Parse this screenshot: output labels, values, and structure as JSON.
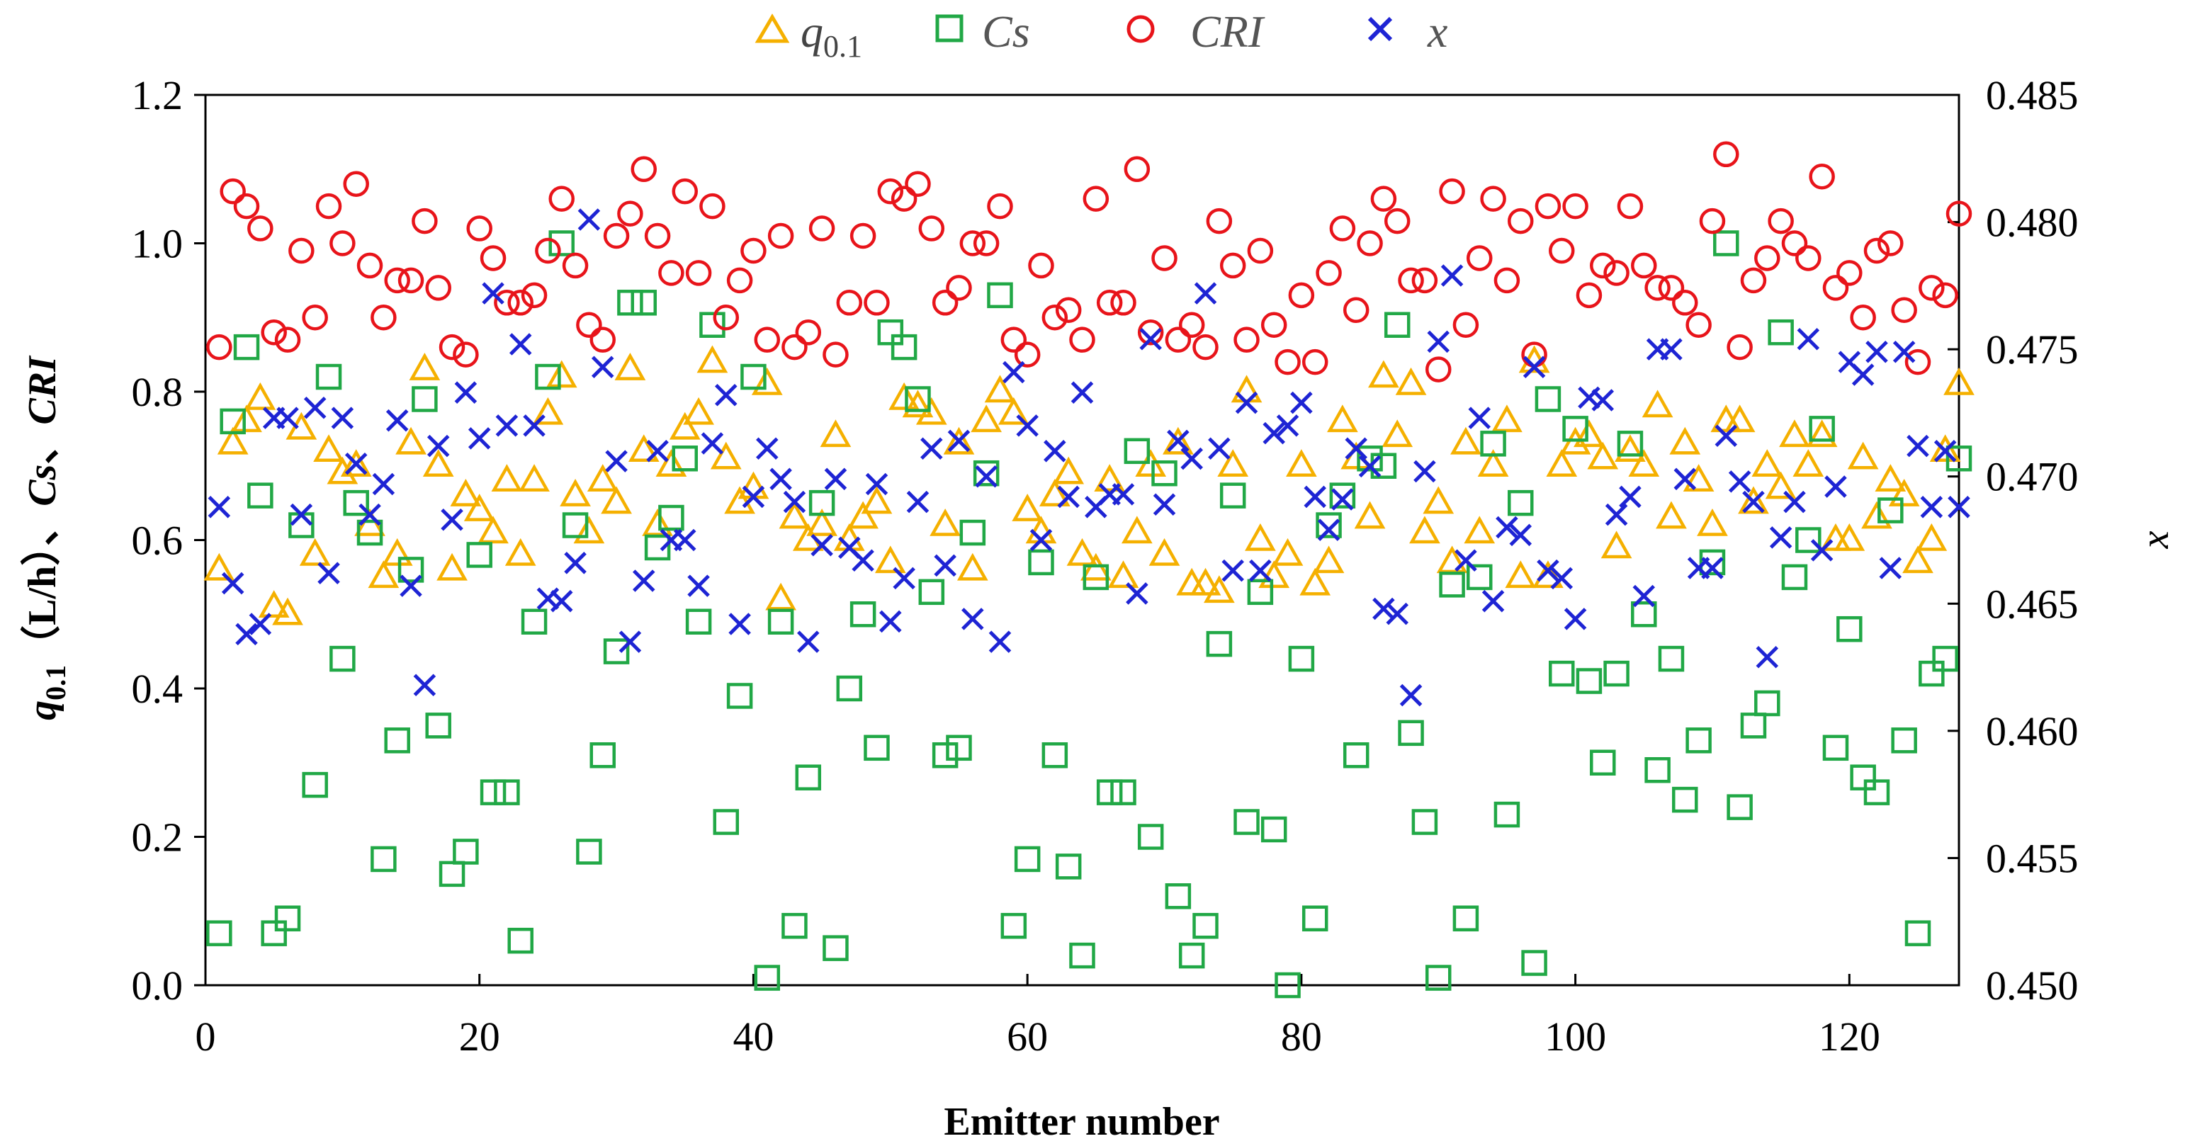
{
  "chart_data": {
    "type": "scatter",
    "title": "",
    "xlabel": "Emitter number",
    "ylabel_left": [
      "q",
      "0.1",
      "（L/h）、",
      "Cs",
      "、",
      "CRI"
    ],
    "ylabel_right": "x",
    "xlim": [
      0,
      128
    ],
    "ylim_left": [
      0,
      1.2
    ],
    "ylim_right": [
      0.45,
      0.485
    ],
    "x_ticks": [
      0,
      20,
      40,
      60,
      80,
      100,
      120
    ],
    "x_tick_labels": [
      "0",
      "20",
      "40",
      "60",
      "80",
      "100",
      "120"
    ],
    "y_left_ticks": [
      0,
      0.2,
      0.4,
      0.6,
      0.8,
      1.0,
      1.2
    ],
    "y_left_tick_labels": [
      "0.0",
      "0.2",
      "0.4",
      "0.6",
      "0.8",
      "1.0",
      "1.2"
    ],
    "y_right_ticks": [
      0.45,
      0.455,
      0.46,
      0.465,
      0.47,
      0.475,
      0.48,
      0.485
    ],
    "y_right_tick_labels": [
      "0.450",
      "0.455",
      "0.460",
      "0.465",
      "0.470",
      "0.475",
      "0.480",
      "0.485"
    ],
    "legend_position": "top",
    "series": [
      {
        "name": "q0.1",
        "label_main": "q",
        "label_sub": "0.1",
        "marker": "triangle",
        "color": "#F5B000",
        "axis": "left",
        "values": [
          0.56,
          0.73,
          0.76,
          0.79,
          0.51,
          0.5,
          0.75,
          0.58,
          0.72,
          0.69,
          0.7,
          0.62,
          0.55,
          0.58,
          0.73,
          0.83,
          0.7,
          0.56,
          0.66,
          0.64,
          0.61,
          0.68,
          0.58,
          0.68,
          0.77,
          0.82,
          0.66,
          0.61,
          0.68,
          0.65,
          0.83,
          0.72,
          0.62,
          0.7,
          0.75,
          0.77,
          0.84,
          0.71,
          0.65,
          0.67,
          0.81,
          0.52,
          0.63,
          0.6,
          0.62,
          0.74,
          0.6,
          0.63,
          0.65,
          0.57,
          0.79,
          0.78,
          0.77,
          0.62,
          0.73,
          0.56,
          0.76,
          0.8,
          0.77,
          0.64,
          0.61,
          0.66,
          0.69,
          0.58,
          0.56,
          0.68,
          0.55,
          0.61,
          0.7,
          0.58,
          0.73,
          0.54,
          0.54,
          0.53,
          0.7,
          0.8,
          0.6,
          0.55,
          0.58,
          0.7,
          0.54,
          0.57,
          0.76,
          0.71,
          0.63,
          0.82,
          0.74,
          0.81,
          0.61,
          0.65,
          0.57,
          0.73,
          0.61,
          0.7,
          0.76,
          0.55,
          0.84,
          0.55,
          0.7,
          0.73,
          0.74,
          0.71,
          0.59,
          0.72,
          0.7,
          0.78,
          0.63,
          0.73,
          0.68,
          0.62,
          0.76,
          0.76,
          0.65,
          0.7,
          0.67,
          0.74,
          0.7,
          0.74,
          0.6,
          0.6,
          0.71,
          0.63,
          0.68,
          0.66,
          0.57,
          0.6,
          0.72,
          0.81
        ]
      },
      {
        "name": "Cs",
        "label_main": "Cs",
        "label_sub": "",
        "marker": "square",
        "color": "#21A846",
        "axis": "left",
        "values": [
          0.07,
          0.76,
          0.86,
          0.66,
          0.07,
          0.09,
          0.62,
          0.27,
          0.82,
          0.44,
          0.65,
          0.61,
          0.17,
          0.33,
          0.56,
          0.79,
          0.35,
          0.15,
          0.18,
          0.58,
          0.26,
          0.26,
          0.06,
          0.49,
          0.82,
          1.0,
          0.62,
          0.18,
          0.31,
          0.45,
          0.92,
          0.92,
          0.59,
          0.63,
          0.71,
          0.49,
          0.89,
          0.22,
          0.39,
          0.82,
          0.01,
          0.49,
          0.08,
          0.28,
          0.65,
          0.05,
          0.4,
          0.5,
          0.32,
          0.88,
          0.86,
          0.79,
          0.53,
          0.31,
          0.32,
          0.61,
          0.69,
          0.93,
          0.08,
          0.17,
          0.57,
          0.31,
          0.16,
          0.04,
          0.55,
          0.26,
          0.26,
          0.72,
          0.2,
          0.69,
          0.12,
          0.04,
          0.08,
          0.46,
          0.66,
          0.22,
          0.53,
          0.21,
          0.0,
          0.44,
          0.09,
          0.62,
          0.66,
          0.31,
          0.71,
          0.7,
          0.89,
          0.34,
          0.22,
          0.01,
          0.54,
          0.09,
          0.55,
          0.73,
          0.23,
          0.65,
          0.03,
          0.79,
          0.42,
          0.75,
          0.41,
          0.3,
          0.42,
          0.73,
          0.5,
          0.29,
          0.44,
          0.25,
          0.33,
          0.57,
          1.0,
          0.24,
          0.35,
          0.38,
          0.88,
          0.55,
          0.6,
          0.75,
          0.32,
          0.48,
          0.28,
          0.26,
          0.64,
          0.33,
          0.07,
          0.42,
          0.44,
          0.71
        ]
      },
      {
        "name": "CRI",
        "label_main": "CRI",
        "label_sub": "",
        "marker": "circle",
        "color": "#E8141A",
        "axis": "left",
        "values": [
          0.86,
          1.07,
          1.05,
          1.02,
          0.88,
          0.87,
          0.99,
          0.9,
          1.05,
          1.0,
          1.08,
          0.97,
          0.9,
          0.95,
          0.95,
          1.03,
          0.94,
          0.86,
          0.85,
          1.02,
          0.98,
          0.92,
          0.92,
          0.93,
          0.99,
          1.06,
          0.97,
          0.89,
          0.87,
          1.01,
          1.04,
          1.1,
          1.01,
          0.96,
          1.07,
          0.96,
          1.05,
          0.9,
          0.95,
          0.99,
          0.87,
          1.01,
          0.86,
          0.88,
          1.02,
          0.85,
          0.92,
          1.01,
          0.92,
          1.07,
          1.06,
          1.08,
          1.02,
          0.92,
          0.94,
          1.0,
          1.0,
          1.05,
          0.87,
          0.85,
          0.97,
          0.9,
          0.91,
          0.87,
          1.06,
          0.92,
          0.92,
          1.1,
          0.88,
          0.98,
          0.87,
          0.89,
          0.86,
          1.03,
          0.97,
          0.87,
          0.99,
          0.89,
          0.84,
          0.93,
          0.84,
          0.96,
          1.02,
          0.91,
          1.0,
          1.06,
          1.03,
          0.95,
          0.95,
          0.83,
          1.07,
          0.89,
          0.98,
          1.06,
          0.95,
          1.03,
          0.85,
          1.05,
          0.99,
          1.05,
          0.93,
          0.97,
          0.96,
          1.05,
          0.97,
          0.94,
          0.94,
          0.92,
          0.89,
          1.03,
          1.12,
          0.86,
          0.95,
          0.98,
          1.03,
          1.0,
          0.98,
          1.09,
          0.94,
          0.96,
          0.9,
          0.99,
          1.0,
          0.91,
          0.84,
          0.94,
          0.93,
          1.04
        ]
      },
      {
        "name": "x",
        "label_main": "x",
        "label_sub": "",
        "marker": "cross",
        "color": "#1E24D4",
        "axis": "right",
        "values": [
          0.4688,
          0.4658,
          0.4638,
          0.4642,
          0.4723,
          0.4723,
          0.4685,
          0.4727,
          0.4662,
          0.4723,
          0.4705,
          0.4685,
          0.4697,
          0.4722,
          0.4657,
          0.4618,
          0.4712,
          0.4683,
          0.4733,
          0.4715,
          0.4772,
          0.472,
          0.4752,
          0.472,
          0.4652,
          0.4651,
          0.4666,
          0.4801,
          0.4743,
          0.4706,
          0.4635,
          0.4659,
          0.471,
          0.4675,
          0.4675,
          0.4657,
          0.4713,
          0.4732,
          0.4642,
          0.4692,
          0.4711,
          0.4699,
          0.469,
          0.4635,
          0.4673,
          0.4699,
          0.4672,
          0.4667,
          0.4697,
          0.4643,
          0.466,
          0.469,
          0.4711,
          0.4665,
          0.4714,
          0.4644,
          0.47,
          0.4635,
          0.4741,
          0.472,
          0.4675,
          0.471,
          0.4692,
          0.4733,
          0.4688,
          0.4693,
          0.4693,
          0.4654,
          0.4754,
          0.4689,
          0.4714,
          0.4707,
          0.4772,
          0.4711,
          0.4663,
          0.4729,
          0.4663,
          0.4717,
          0.472,
          0.4729,
          0.4692,
          0.4679,
          0.4691,
          0.4711,
          0.4704,
          0.4648,
          0.4646,
          0.4614,
          0.4702,
          0.4753,
          0.4779,
          0.4667,
          0.4723,
          0.4651,
          0.468,
          0.4677,
          0.4743,
          0.4663,
          0.466,
          0.4644,
          0.4731,
          0.473,
          0.4685,
          0.4692,
          0.4653,
          0.475,
          0.475,
          0.4699,
          0.4664,
          0.4664,
          0.4716,
          0.4698,
          0.469,
          0.4629,
          0.4676,
          0.469,
          0.4754,
          0.4671,
          0.4696,
          0.4745,
          0.474,
          0.4749,
          0.4664,
          0.4749,
          0.4712,
          0.4688,
          0.471,
          0.4688
        ]
      }
    ]
  }
}
